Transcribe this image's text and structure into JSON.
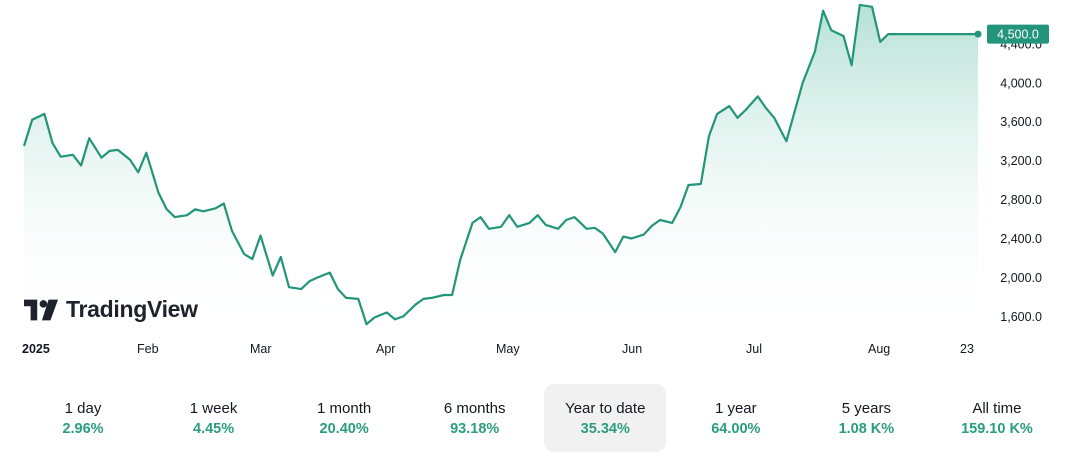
{
  "chart_data": {
    "type": "area",
    "ylim": [
      1450,
      4850
    ],
    "yticks": [
      1600,
      2000,
      2400,
      2800,
      3200,
      3600,
      4000
    ],
    "ytick_labels": [
      "1,600.0",
      "2,000.0",
      "2,400.0",
      "2,800.0",
      "3,200.0",
      "3,600.0",
      "4,000.0"
    ],
    "hidden_ytick_label": "4,400.0",
    "current_price_label": "4,500.0",
    "current_price": 4500,
    "xaxis_labels": [
      "2025",
      "Feb",
      "Mar",
      "Apr",
      "May",
      "Jun",
      "Jul",
      "Aug",
      "23"
    ],
    "x": [
      "2025-01-01",
      "2025-01-03",
      "2025-01-06",
      "2025-01-08",
      "2025-01-10",
      "2025-01-13",
      "2025-01-15",
      "2025-01-17",
      "2025-01-20",
      "2025-01-22",
      "2025-01-24",
      "2025-01-27",
      "2025-01-29",
      "2025-01-31",
      "2025-02-03",
      "2025-02-05",
      "2025-02-07",
      "2025-02-10",
      "2025-02-12",
      "2025-02-14",
      "2025-02-17",
      "2025-02-19",
      "2025-02-21",
      "2025-02-24",
      "2025-02-26",
      "2025-02-28",
      "2025-03-03",
      "2025-03-05",
      "2025-03-07",
      "2025-03-10",
      "2025-03-12",
      "2025-03-14",
      "2025-03-17",
      "2025-03-19",
      "2025-03-21",
      "2025-03-24",
      "2025-03-26",
      "2025-03-28",
      "2025-03-31",
      "2025-04-02",
      "2025-04-04",
      "2025-04-07",
      "2025-04-09",
      "2025-04-11",
      "2025-04-14",
      "2025-04-16",
      "2025-04-18",
      "2025-04-21",
      "2025-04-23",
      "2025-04-25",
      "2025-04-28",
      "2025-04-30",
      "2025-05-02",
      "2025-05-05",
      "2025-05-07",
      "2025-05-09",
      "2025-05-12",
      "2025-05-14",
      "2025-05-16",
      "2025-05-19",
      "2025-05-21",
      "2025-05-23",
      "2025-05-26",
      "2025-05-28",
      "2025-05-30",
      "2025-06-02",
      "2025-06-04",
      "2025-06-06",
      "2025-06-09",
      "2025-06-11",
      "2025-06-13",
      "2025-06-16",
      "2025-06-18",
      "2025-06-20",
      "2025-06-23",
      "2025-06-25",
      "2025-06-27",
      "2025-06-30",
      "2025-07-02",
      "2025-07-04",
      "2025-07-07",
      "2025-07-09",
      "2025-07-11",
      "2025-07-14",
      "2025-07-16",
      "2025-07-18",
      "2025-07-21",
      "2025-07-23",
      "2025-07-25",
      "2025-07-28",
      "2025-07-30",
      "2025-08-01",
      "2025-08-04",
      "2025-08-06",
      "2025-08-08",
      "2025-08-11",
      "2025-08-13",
      "2025-08-15",
      "2025-08-18",
      "2025-08-20",
      "2025-08-22",
      "2025-08-23"
    ],
    "series": [
      {
        "values": [
          3350,
          3620,
          3680,
          3380,
          3240,
          3260,
          3150,
          3430,
          3230,
          3300,
          3310,
          3210,
          3080,
          3280,
          2870,
          2700,
          2620,
          2640,
          2700,
          2680,
          2710,
          2760,
          2480,
          2240,
          2190,
          2430,
          2020,
          2210,
          1900,
          1880,
          1960,
          2000,
          2050,
          1880,
          1790,
          1780,
          1520,
          1590,
          1640,
          1570,
          1600,
          1720,
          1780,
          1790,
          1820,
          1820,
          2180,
          2560,
          2620,
          2500,
          2520,
          2640,
          2520,
          2560,
          2640,
          2540,
          2500,
          2590,
          2620,
          2500,
          2510,
          2450,
          2260,
          2420,
          2400,
          2440,
          2530,
          2590,
          2560,
          2720,
          2950,
          2960,
          3450,
          3680,
          3760,
          3640,
          3720,
          3860,
          3740,
          3640,
          3400,
          3700,
          4000,
          4320,
          4740,
          4540,
          4480,
          4180,
          4800,
          4780,
          4420,
          4500,
          4500,
          4500,
          4500,
          4500,
          4500,
          4500,
          4500,
          4500,
          4500,
          4500
        ],
        "color": "#22957a"
      }
    ]
  },
  "brand": {
    "name": "TradingView"
  },
  "periods": [
    {
      "label": "1 day",
      "value": "2.96%"
    },
    {
      "label": "1 week",
      "value": "4.45%"
    },
    {
      "label": "1 month",
      "value": "20.40%"
    },
    {
      "label": "6 months",
      "value": "93.18%"
    },
    {
      "label": "Year to date",
      "value": "35.34%",
      "active": true
    },
    {
      "label": "1 year",
      "value": "64.00%"
    },
    {
      "label": "5 years",
      "value": "1.08 K%"
    },
    {
      "label": "All time",
      "value": "159.10 K%"
    }
  ],
  "colors": {
    "line": "#22957a",
    "area_top": "#bfe6dc",
    "price_tag": "#22957a",
    "positive": "#2a9d7f"
  }
}
